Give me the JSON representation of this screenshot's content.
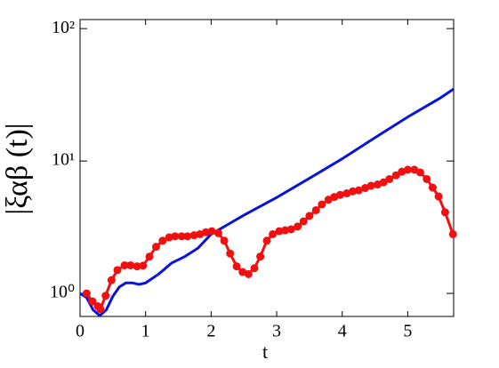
{
  "chart_data": {
    "type": "line",
    "xlabel": "t",
    "ylabel": "|ξαβ (t)|",
    "log_y": true,
    "xlim": [
      0,
      5.7
    ],
    "xticks": [
      0,
      1,
      2,
      3,
      4,
      5
    ],
    "ylim": [
      0.67,
      117
    ],
    "yticks": [
      {
        "value": 1,
        "label": "10⁰"
      },
      {
        "value": 10,
        "label": "10¹"
      },
      {
        "value": 100,
        "label": "10²"
      }
    ],
    "series": [
      {
        "color": "#0a14d8",
        "markers": false,
        "x": [
          0,
          0.1,
          0.2,
          0.3,
          0.4,
          0.5,
          0.6,
          0.7,
          0.8,
          0.9,
          1.0,
          1.2,
          1.4,
          1.6,
          1.8,
          2.0,
          2.5,
          3.0,
          3.5,
          4.0,
          4.5,
          5.0,
          5.5,
          5.7
        ],
        "values": [
          1.0,
          0.93,
          0.75,
          0.68,
          0.75,
          0.95,
          1.12,
          1.2,
          1.2,
          1.17,
          1.2,
          1.4,
          1.7,
          1.9,
          2.2,
          2.8,
          3.9,
          5.3,
          7.4,
          10.4,
          15,
          21.5,
          30,
          35
        ]
      },
      {
        "color": "#f01010",
        "markers": true,
        "x": [
          0.1,
          0.19,
          0.27,
          0.31,
          0.39,
          0.48,
          0.57,
          0.68,
          0.77,
          0.87,
          0.96,
          1.06,
          1.16,
          1.26,
          1.36,
          1.45,
          1.55,
          1.64,
          1.74,
          1.83,
          1.92,
          2.01,
          2.11,
          2.2,
          2.29,
          2.39,
          2.48,
          2.57,
          2.66,
          2.75,
          2.85,
          2.94,
          3.04,
          3.13,
          3.22,
          3.32,
          3.41,
          3.5,
          3.6,
          3.69,
          3.79,
          3.88,
          3.97,
          4.07,
          4.16,
          4.25,
          4.35,
          4.44,
          4.54,
          4.63,
          4.72,
          4.82,
          4.91,
          5.0,
          5.1,
          5.19,
          5.29,
          5.38,
          5.47,
          5.57,
          5.69
        ],
        "values": [
          1.0,
          0.87,
          0.8,
          0.76,
          0.96,
          1.26,
          1.5,
          1.63,
          1.63,
          1.6,
          1.62,
          1.9,
          2.25,
          2.5,
          2.65,
          2.7,
          2.7,
          2.7,
          2.75,
          2.8,
          2.9,
          2.95,
          2.85,
          2.5,
          2.0,
          1.6,
          1.45,
          1.4,
          1.55,
          1.9,
          2.5,
          2.8,
          2.95,
          3.0,
          3.05,
          3.2,
          3.5,
          3.85,
          4.25,
          4.7,
          5.1,
          5.35,
          5.55,
          5.7,
          5.9,
          6.0,
          6.25,
          6.5,
          6.65,
          6.9,
          7.3,
          7.8,
          8.3,
          8.6,
          8.6,
          8.2,
          7.3,
          6.3,
          5.4,
          4.1,
          2.8
        ]
      }
    ]
  }
}
